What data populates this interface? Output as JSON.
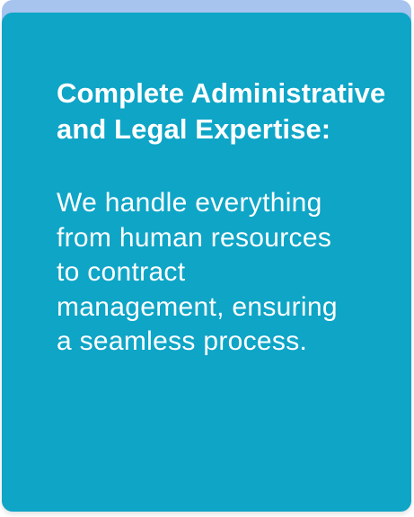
{
  "card": {
    "title": "Complete Administrative and Legal Expertise:",
    "description": "We handle everything from human resources to contract management, ensuring a seamless process."
  },
  "colors": {
    "card_background": "#0ea5c7",
    "card_top_accent": "#a7c4ef",
    "text": "#ffffff"
  }
}
